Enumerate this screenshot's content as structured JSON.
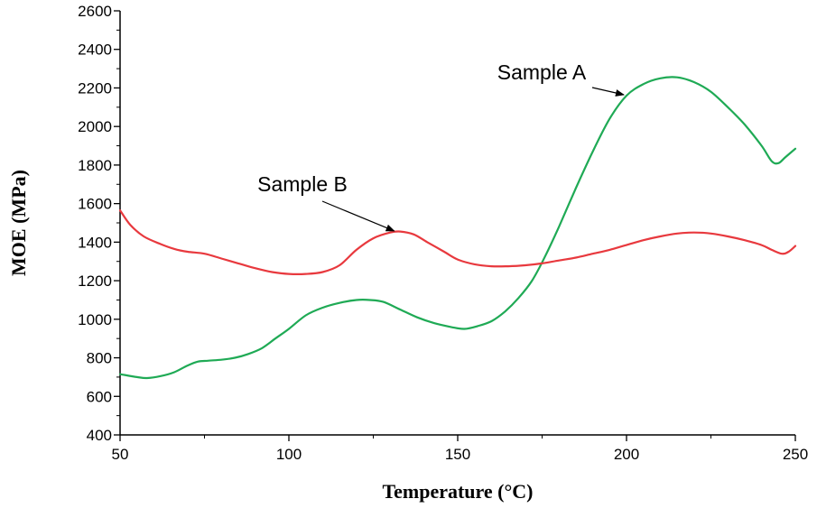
{
  "chart_data": {
    "type": "line",
    "title": "",
    "xlabel": "Temperature (°C)",
    "ylabel": "MOE (MPa)",
    "xlim": [
      50,
      250
    ],
    "ylim": [
      400,
      2600
    ],
    "xticks": [
      50,
      100,
      150,
      200,
      250
    ],
    "yticks": [
      400,
      600,
      800,
      1000,
      1200,
      1400,
      1600,
      1800,
      2000,
      2200,
      2400,
      2600
    ],
    "grid": false,
    "series": [
      {
        "name": "Sample A",
        "color": "#1faa55",
        "x": [
          50,
          55,
          58,
          62,
          66,
          70,
          73,
          76,
          80,
          84,
          88,
          92,
          96,
          100,
          105,
          110,
          115,
          120,
          124,
          128,
          133,
          138,
          143,
          148,
          152,
          156,
          160,
          164,
          168,
          172,
          176,
          180,
          185,
          190,
          195,
          200,
          205,
          210,
          215,
          220,
          225,
          230,
          235,
          240,
          243,
          245,
          247,
          250
        ],
        "y": [
          715,
          700,
          695,
          705,
          725,
          760,
          780,
          785,
          790,
          800,
          820,
          850,
          900,
          950,
          1020,
          1060,
          1085,
          1100,
          1100,
          1090,
          1050,
          1010,
          980,
          960,
          950,
          965,
          990,
          1040,
          1110,
          1200,
          1330,
          1480,
          1680,
          1870,
          2040,
          2160,
          2220,
          2250,
          2255,
          2230,
          2180,
          2100,
          2010,
          1900,
          1820,
          1810,
          1840,
          1885
        ]
      },
      {
        "name": "Sample B",
        "color": "#e8393e",
        "x": [
          50,
          53,
          57,
          62,
          66,
          70,
          75,
          80,
          85,
          90,
          95,
          100,
          105,
          110,
          115,
          120,
          125,
          130,
          133,
          137,
          141,
          146,
          150,
          155,
          160,
          165,
          170,
          175,
          180,
          185,
          190,
          195,
          200,
          205,
          210,
          215,
          220,
          225,
          230,
          235,
          240,
          243,
          246,
          248,
          250
        ],
        "y": [
          1565,
          1490,
          1430,
          1390,
          1365,
          1350,
          1340,
          1315,
          1290,
          1265,
          1245,
          1235,
          1235,
          1245,
          1280,
          1360,
          1420,
          1450,
          1455,
          1440,
          1400,
          1350,
          1310,
          1285,
          1275,
          1275,
          1280,
          1290,
          1305,
          1320,
          1340,
          1360,
          1385,
          1410,
          1430,
          1445,
          1450,
          1445,
          1430,
          1410,
          1385,
          1360,
          1340,
          1350,
          1380
        ]
      }
    ],
    "annotations": [
      {
        "text": "Sample A",
        "target_series": "Sample A",
        "target_x": 200
      },
      {
        "text": "Sample B",
        "target_series": "Sample B",
        "target_x": 132
      }
    ]
  }
}
